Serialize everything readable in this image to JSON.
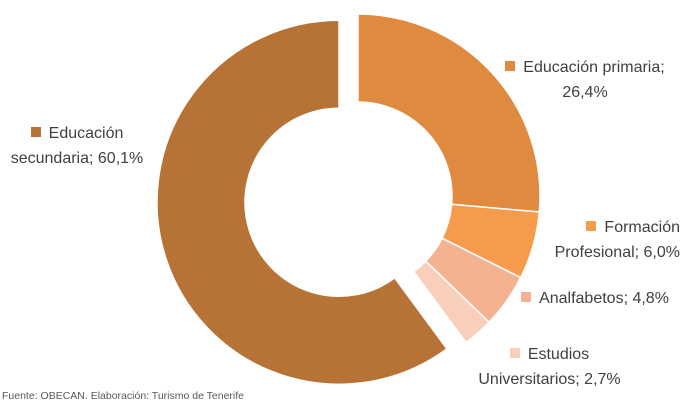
{
  "chart_data": {
    "type": "donut",
    "categories": [
      "Educación primaria",
      "Formación Profesional",
      "Analfabetos",
      "Estudios Universitarios",
      "Educación secundaria"
    ],
    "values": [
      26.4,
      6.0,
      4.8,
      2.7,
      60.1
    ],
    "value_labels": [
      "Educación primaria; 26,4%",
      "Formación Profesional; 6,0%",
      "Analfabetos; 4,8%",
      "Estudios Universitarios; 2,7%",
      "Educación secundaria; 60,1%"
    ],
    "colors": [
      "#df8a3f",
      "#f69b4c",
      "#f5b291",
      "#f9cfbc",
      "#b77235"
    ],
    "exploded": [
      4
    ],
    "source": "Fuente: OBECAN. Elaboración: Turismo de Tenerife"
  }
}
